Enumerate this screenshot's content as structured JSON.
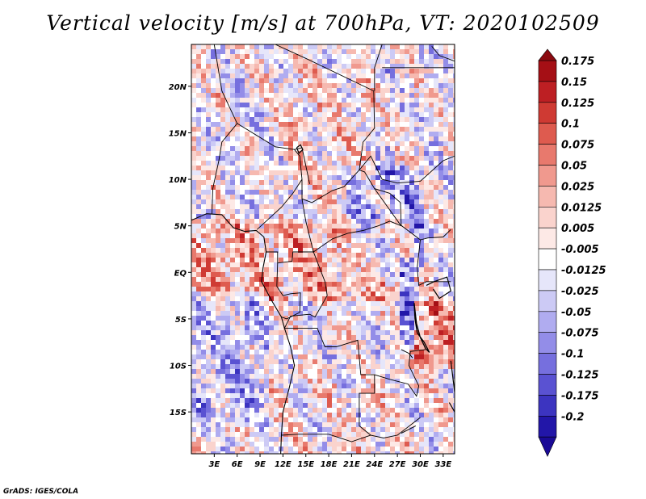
{
  "title": "Vertical velocity [m/s] at 700hPa, VT: 2020102509",
  "credit": "GrADS: IGES/COLA",
  "map": {
    "lon_range": [
      0,
      34.5
    ],
    "lat_range": [
      -19.5,
      24.5
    ],
    "lat_ticks": [
      {
        "value": 20,
        "label": "20N"
      },
      {
        "value": 15,
        "label": "15N"
      },
      {
        "value": 10,
        "label": "10N"
      },
      {
        "value": 5,
        "label": "5N"
      },
      {
        "value": 0,
        "label": "EQ"
      },
      {
        "value": -5,
        "label": "5S"
      },
      {
        "value": -10,
        "label": "10S"
      },
      {
        "value": -15,
        "label": "15S"
      }
    ],
    "lon_ticks": [
      {
        "value": 3,
        "label": "3E"
      },
      {
        "value": 6,
        "label": "6E"
      },
      {
        "value": 9,
        "label": "9E"
      },
      {
        "value": 12,
        "label": "12E"
      },
      {
        "value": 15,
        "label": "15E"
      },
      {
        "value": 18,
        "label": "18E"
      },
      {
        "value": 21,
        "label": "21E"
      },
      {
        "value": 24,
        "label": "24E"
      },
      {
        "value": 27,
        "label": "27E"
      },
      {
        "value": 30,
        "label": "30E"
      },
      {
        "value": 33,
        "label": "33E"
      }
    ],
    "field": "vertical velocity at 700hPa (shaded)"
  },
  "colorbar": {
    "levels": [
      {
        "label": "0.175",
        "color": "#a50f15"
      },
      {
        "label": "0.15",
        "color": "#bd1f23"
      },
      {
        "label": "0.125",
        "color": "#cf3a33"
      },
      {
        "label": "0.1",
        "color": "#de5b4f"
      },
      {
        "label": "0.075",
        "color": "#e8796d"
      },
      {
        "label": "0.05",
        "color": "#f0998e"
      },
      {
        "label": "0.025",
        "color": "#f6b9b0"
      },
      {
        "label": "0.0125",
        "color": "#fad3cd"
      },
      {
        "label": "0.005",
        "color": "#fde9e6"
      },
      {
        "label": "-0.005",
        "color": "#ffffff"
      },
      {
        "label": "-0.0125",
        "color": "#e6e6fa"
      },
      {
        "label": "-0.025",
        "color": "#cccaf5"
      },
      {
        "label": "-0.05",
        "color": "#b0acf0"
      },
      {
        "label": "-0.075",
        "color": "#938de8"
      },
      {
        "label": "-0.1",
        "color": "#766fde"
      },
      {
        "label": "-0.125",
        "color": "#5a52d2"
      },
      {
        "label": "-0.175",
        "color": "#3c34c0"
      },
      {
        "label": "-0.2",
        "color": "#2216a8"
      }
    ],
    "top_color": "#8b0a10",
    "bottom_color": "#1a0a96"
  }
}
